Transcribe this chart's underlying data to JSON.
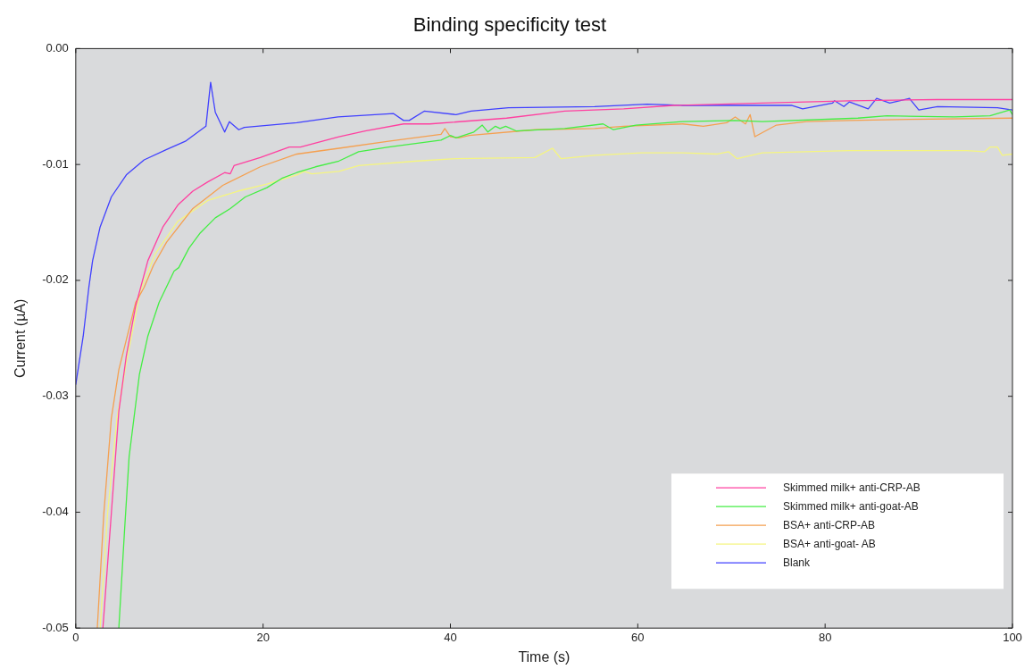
{
  "chart_data": {
    "type": "line",
    "title": "Binding specificity test",
    "xlabel": "Time (s)",
    "ylabel": "Current (µA)",
    "xlim": [
      0,
      100
    ],
    "xticks": [
      0,
      20,
      40,
      60,
      80,
      100
    ],
    "ylim": [
      -0.05,
      0
    ],
    "yticks": [
      {
        "value": -0.05,
        "label": "-0.05"
      },
      {
        "value": -0.04,
        "label": "-0.04"
      },
      {
        "value": -0.03,
        "label": "-0.03"
      },
      {
        "value": -0.02,
        "label": "-0.02"
      },
      {
        "value": -0.01,
        "label": "-0.01"
      },
      {
        "value": 0,
        "label": "0.00"
      }
    ],
    "grid": false,
    "legend": "bottom right",
    "marker": "none",
    "line_style": "solid",
    "series": [
      {
        "name": "Skimmed milk+ anti-CRP-AB",
        "color": "#ff40a0",
        "x": [
          2.9,
          3.8,
          4.6,
          5.4,
          6.4,
          7.7,
          9.3,
          10.9,
          12.5,
          14.1,
          15.9,
          16.5,
          16.9,
          19.7,
          22.8,
          24,
          28.1,
          30.9,
          35,
          37.8,
          46,
          52.2,
          58.5,
          63.8,
          73.3,
          82.6,
          92,
          100
        ],
        "values": [
          -0.05,
          -0.0401,
          -0.0313,
          -0.0265,
          -0.0222,
          -0.0183,
          -0.0154,
          -0.0135,
          -0.0123,
          -0.0115,
          -0.0107,
          -0.0108,
          -0.0101,
          -0.0094,
          -0.0085,
          -0.0085,
          -0.0076,
          -0.0071,
          -0.0065,
          -0.0065,
          -0.006,
          -0.0054,
          -0.0052,
          -0.0049,
          -0.0047,
          -0.0045,
          -0.0044,
          -0.0044
        ]
      },
      {
        "name": "Skimmed milk+ anti-goat-AB",
        "color": "#44ee44",
        "x": [
          4.6,
          5.2,
          5.7,
          6.8,
          7.7,
          8.9,
          10.5,
          11,
          12.1,
          13.3,
          14.9,
          16.5,
          18.1,
          20.4,
          22,
          23.6,
          25.6,
          28.1,
          30.2,
          33.4,
          39,
          40,
          40.6,
          42.5,
          43.4,
          44,
          44.8,
          45.3,
          45.9,
          47,
          52.2,
          56.3,
          57.4,
          59.8,
          64.8,
          70.4,
          73.3,
          83.5,
          86.6,
          93.8,
          97.6,
          99.7,
          100
        ],
        "values": [
          -0.05,
          -0.0417,
          -0.0352,
          -0.0281,
          -0.0248,
          -0.0219,
          -0.0192,
          -0.0189,
          -0.0172,
          -0.0159,
          -0.0146,
          -0.0138,
          -0.0128,
          -0.012,
          -0.0112,
          -0.0107,
          -0.0102,
          -0.0097,
          -0.0089,
          -0.0085,
          -0.0079,
          -0.0075,
          -0.0077,
          -0.0072,
          -0.0066,
          -0.0072,
          -0.0067,
          -0.0069,
          -0.0067,
          -0.0071,
          -0.0069,
          -0.0065,
          -0.007,
          -0.0066,
          -0.0063,
          -0.0062,
          -0.0063,
          -0.006,
          -0.0058,
          -0.0059,
          -0.0058,
          -0.0053,
          -0.0057
        ]
      },
      {
        "name": "BSA+ anti-CRP-AB",
        "color": "#f5a050",
        "x": [
          2.3,
          3,
          3.8,
          4.6,
          6.4,
          7.3,
          8.3,
          9.7,
          12.5,
          15.7,
          19.7,
          23.6,
          28.1,
          33.4,
          39,
          39.4,
          40,
          40.9,
          42,
          49,
          55.4,
          58.5,
          64.8,
          67,
          69.5,
          70.4,
          71.5,
          72,
          72.5,
          74.8,
          78,
          82.6,
          89,
          100
        ],
        "values": [
          -0.05,
          -0.0401,
          -0.0319,
          -0.0277,
          -0.0219,
          -0.0206,
          -0.0187,
          -0.0167,
          -0.0138,
          -0.0118,
          -0.0102,
          -0.0091,
          -0.0086,
          -0.008,
          -0.0074,
          -0.0069,
          -0.0076,
          -0.0077,
          -0.0075,
          -0.007,
          -0.0069,
          -0.0067,
          -0.0065,
          -0.0067,
          -0.0064,
          -0.0059,
          -0.0065,
          -0.0057,
          -0.0076,
          -0.0066,
          -0.0063,
          -0.0062,
          -0.0061,
          -0.006
        ]
      },
      {
        "name": "BSA+ anti-goat- AB",
        "color": "#f5f580",
        "x": [
          2.6,
          3.4,
          4.4,
          5.4,
          6.9,
          8.5,
          10.9,
          14.1,
          17.3,
          20.4,
          23.6,
          24.4,
          25.2,
          28.1,
          30.2,
          36.5,
          40.6,
          49,
          50.9,
          51.8,
          55.4,
          60.4,
          64.8,
          68.5,
          69.7,
          70.6,
          73.3,
          82.6,
          95.1,
          97,
          97.6,
          98.4,
          98.9,
          100
        ],
        "values": [
          -0.05,
          -0.0401,
          -0.0319,
          -0.0271,
          -0.0209,
          -0.0177,
          -0.0149,
          -0.0131,
          -0.0123,
          -0.0117,
          -0.0109,
          -0.0106,
          -0.0108,
          -0.0106,
          -0.0101,
          -0.0097,
          -0.0095,
          -0.0094,
          -0.0086,
          -0.0095,
          -0.0092,
          -0.009,
          -0.009,
          -0.0091,
          -0.0089,
          -0.0095,
          -0.009,
          -0.0088,
          -0.0088,
          -0.0089,
          -0.0085,
          -0.0085,
          -0.0092,
          -0.0091
        ]
      },
      {
        "name": "Blank",
        "color": "#4040ff",
        "x": [
          0,
          0.8,
          1.4,
          1.8,
          2.6,
          3.8,
          5.4,
          7.3,
          9.7,
          11.7,
          13.9,
          14.4,
          14.9,
          15.9,
          16.4,
          17.4,
          18,
          23.6,
          28,
          33.9,
          35,
          35.6,
          37.2,
          40.6,
          42.2,
          46.2,
          55.4,
          61,
          64.8,
          76.4,
          77.6,
          80.8,
          81,
          82,
          82.6,
          84.6,
          85.5,
          86.9,
          89,
          90,
          92,
          98.4,
          100
        ],
        "values": [
          -0.029,
          -0.0248,
          -0.0206,
          -0.0183,
          -0.0154,
          -0.0128,
          -0.0109,
          -0.0096,
          -0.0087,
          -0.008,
          -0.0067,
          -0.0029,
          -0.0055,
          -0.0072,
          -0.0063,
          -0.007,
          -0.0068,
          -0.0064,
          -0.0059,
          -0.0056,
          -0.0062,
          -0.0062,
          -0.0054,
          -0.0057,
          -0.0054,
          -0.0051,
          -0.005,
          -0.0048,
          -0.0049,
          -0.0049,
          -0.0052,
          -0.0047,
          -0.0045,
          -0.005,
          -0.0046,
          -0.0052,
          -0.0043,
          -0.0047,
          -0.0043,
          -0.0053,
          -0.005,
          -0.0051,
          -0.0053
        ]
      }
    ]
  }
}
